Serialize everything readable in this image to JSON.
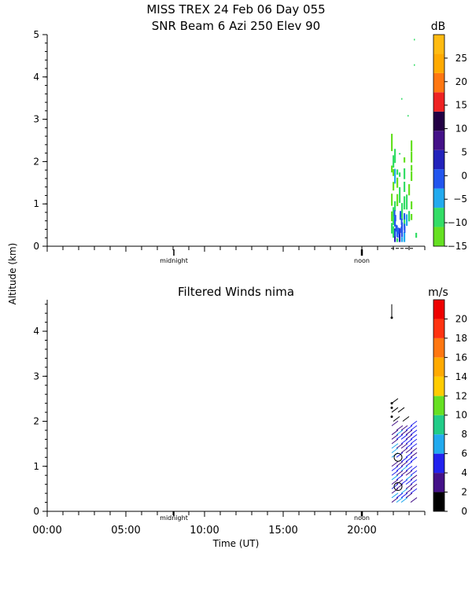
{
  "header": {
    "title_line1": "MISS TREX  24 Feb 06 Day 055",
    "title_line2": "SNR Beam 6 Azi 250 Elev 90"
  },
  "shared": {
    "y_axis_label": "Altitude (km)",
    "x_axis_label": "Time (UT)",
    "x_tick_labels": [
      "00:00",
      "05:00",
      "10:00",
      "15:00",
      "20:00"
    ],
    "marker_midnight": "midnight",
    "marker_noon": "noon"
  },
  "chart_data": [
    {
      "type": "heatmap",
      "title": "MISS TREX  24 Feb 06 Day 055 / SNR Beam 6 Azi 250 Elev 90",
      "xlabel": "Time (UT)",
      "ylabel": "Altitude (km)",
      "xlim": [
        0,
        24
      ],
      "ylim": [
        0,
        5
      ],
      "y_ticks": [
        0,
        1,
        2,
        3,
        4,
        5
      ],
      "colorbar": {
        "unit": "dB",
        "ticks": [
          25,
          20,
          15,
          10,
          5,
          0,
          -5,
          -10,
          -15
        ],
        "tick_labels": [
          "25",
          "20",
          "15",
          "10",
          "5",
          "0",
          "−5",
          "−10",
          "−15"
        ],
        "range": [
          -15,
          30
        ],
        "colors": [
          "#66e022",
          "#33dd66",
          "#22aaee",
          "#2255ee",
          "#2222bb",
          "#441188",
          "#220044",
          "#ee2222",
          "#ff7711",
          "#ffaa00",
          "#ffbb11"
        ]
      },
      "data_summary": "SNR returns only between about 21.8 and 23.4 UT, mostly below 2.2 km, values roughly -15 to -5 dB; sparse points up to 4.9 km."
    },
    {
      "type": "scatter",
      "title": "Filtered Winds nima",
      "xlabel": "Time (UT)",
      "ylabel": "Altitude (km)",
      "xlim": [
        0,
        24
      ],
      "ylim": [
        0,
        4.7
      ],
      "y_ticks": [
        0,
        1,
        2,
        3,
        4
      ],
      "colorbar": {
        "unit": "m/s",
        "ticks": [
          20,
          18,
          16,
          14,
          12,
          10,
          8,
          6,
          4,
          2,
          0
        ],
        "tick_labels": [
          "20",
          "18",
          "16",
          "14",
          "12",
          "10",
          "8",
          "6",
          "4",
          "2",
          "0"
        ],
        "range": [
          0,
          22
        ],
        "colors": [
          "#000000",
          "#441188",
          "#2222ee",
          "#22aaee",
          "#22cc88",
          "#66e022",
          "#ffcc00",
          "#ffaa00",
          "#ff7711",
          "#ff3311",
          "#ee0000"
        ]
      },
      "data_summary": "Wind barbs only between about 21.8 and 23.3 UT, altitudes 0.2 to 2.5 km and near 4.3-4.6 km, speeds mostly 2-6 m/s."
    }
  ]
}
